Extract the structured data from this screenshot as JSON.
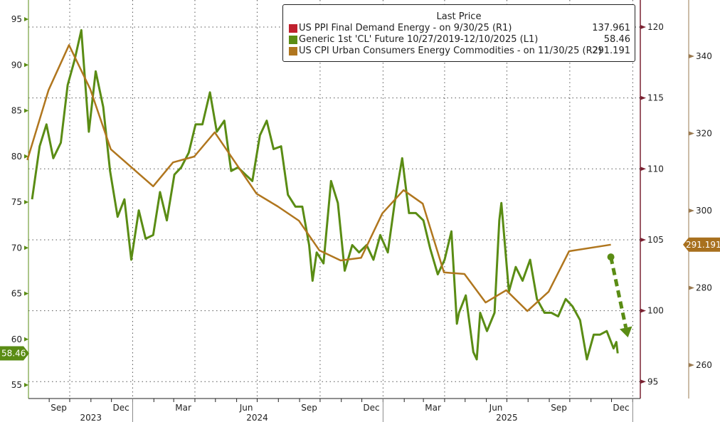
{
  "legend": {
    "title": "Last Price",
    "entries": [
      {
        "label": "US PPI Final Demand Energy -  on 9/30/25  (R1)",
        "value": "137.961",
        "color": "#c0202e"
      },
      {
        "label": "Generic 1st 'CL' Future 10/27/2019-12/10/2025   (L1)",
        "value": "58.46",
        "color": "#5a8c14"
      },
      {
        "label": "US CPI Urban Consumers Energy Commodities -  on 11/30/25  (R2)",
        "value": "291.191",
        "color": "#b0761e"
      }
    ]
  },
  "chart_data": {
    "type": "line",
    "grid": true,
    "legend_position": "top-right",
    "x_month_labels": [
      {
        "date": "2023-09-15",
        "label": "Sep"
      },
      {
        "date": "2023-12-15",
        "label": "Dec"
      },
      {
        "date": "2024-03-15",
        "label": "Mar"
      },
      {
        "date": "2024-06-15",
        "label": "Jun"
      },
      {
        "date": "2024-09-15",
        "label": "Sep"
      },
      {
        "date": "2024-12-15",
        "label": "Dec"
      },
      {
        "date": "2025-03-15",
        "label": "Mar"
      },
      {
        "date": "2025-06-15",
        "label": "Jun"
      },
      {
        "date": "2025-09-15",
        "label": "Sep"
      },
      {
        "date": "2025-12-15",
        "label": "Dec"
      }
    ],
    "x_year_labels": [
      {
        "date": "2023-11-01",
        "label": "2023"
      },
      {
        "date": "2024-07-01",
        "label": "2024"
      },
      {
        "date": "2025-07-01",
        "label": "2025"
      }
    ],
    "axes": {
      "L1": {
        "range": [
          54,
          97
        ],
        "ticks": [
          55,
          60,
          65,
          70,
          75,
          80,
          85,
          90,
          95
        ],
        "color": "#5a8c14"
      },
      "R1": {
        "range": [
          94,
          121.9
        ],
        "ticks": [
          95,
          100,
          105,
          110,
          115,
          120
        ],
        "color": "#7a2232"
      },
      "R2": {
        "range": [
          254,
          352.5
        ],
        "ticks": [
          260,
          280,
          300,
          320,
          340
        ],
        "color": "#9a7a50"
      }
    },
    "last_value_labels": {
      "L1": "58.46",
      "R2": "291.191"
    },
    "series": [
      {
        "name": "Generic 1st 'CL' Future 10/27/2019-12/10/2025   (L1)",
        "axis": "L1",
        "color": "#5a8c14",
        "points": [
          [
            "2023-08-07",
            75.3
          ],
          [
            "2023-08-18",
            81.1
          ],
          [
            "2023-08-28",
            83.5
          ],
          [
            "2023-09-07",
            79.8
          ],
          [
            "2023-09-18",
            81.5
          ],
          [
            "2023-09-28",
            87.8
          ],
          [
            "2023-10-08",
            90.5
          ],
          [
            "2023-10-18",
            93.8
          ],
          [
            "2023-10-29",
            82.7
          ],
          [
            "2023-11-08",
            89.3
          ],
          [
            "2023-11-19",
            85.4
          ],
          [
            "2023-11-29",
            78.4
          ],
          [
            "2023-12-10",
            73.4
          ],
          [
            "2023-12-20",
            75.3
          ],
          [
            "2023-12-30",
            68.7
          ],
          [
            "2024-01-10",
            74.1
          ],
          [
            "2024-01-20",
            71.0
          ],
          [
            "2024-01-31",
            71.4
          ],
          [
            "2024-02-10",
            76.1
          ],
          [
            "2024-02-20",
            73.0
          ],
          [
            "2024-03-02",
            78.0
          ],
          [
            "2024-03-12",
            78.8
          ],
          [
            "2024-03-23",
            80.4
          ],
          [
            "2024-04-02",
            83.5
          ],
          [
            "2024-04-12",
            83.5
          ],
          [
            "2024-04-23",
            87.0
          ],
          [
            "2024-05-03",
            82.7
          ],
          [
            "2024-05-14",
            83.9
          ],
          [
            "2024-05-24",
            78.4
          ],
          [
            "2024-06-03",
            78.8
          ],
          [
            "2024-06-14",
            78.0
          ],
          [
            "2024-06-24",
            77.3
          ],
          [
            "2024-07-05",
            82.3
          ],
          [
            "2024-07-15",
            83.9
          ],
          [
            "2024-07-25",
            80.8
          ],
          [
            "2024-08-05",
            81.1
          ],
          [
            "2024-08-15",
            75.8
          ],
          [
            "2024-08-26",
            74.5
          ],
          [
            "2024-09-05",
            74.5
          ],
          [
            "2024-09-15",
            70.3
          ],
          [
            "2024-09-20",
            66.4
          ],
          [
            "2024-09-26",
            69.5
          ],
          [
            "2024-10-06",
            68.3
          ],
          [
            "2024-10-17",
            77.3
          ],
          [
            "2024-10-27",
            74.9
          ],
          [
            "2024-11-06",
            67.5
          ],
          [
            "2024-11-17",
            70.3
          ],
          [
            "2024-11-27",
            69.5
          ],
          [
            "2024-12-08",
            70.3
          ],
          [
            "2024-12-18",
            68.7
          ],
          [
            "2024-12-28",
            71.4
          ],
          [
            "2025-01-08",
            69.5
          ],
          [
            "2025-01-18",
            74.9
          ],
          [
            "2025-01-29",
            79.8
          ],
          [
            "2025-02-08",
            73.8
          ],
          [
            "2025-02-18",
            73.8
          ],
          [
            "2025-03-01",
            73.0
          ],
          [
            "2025-03-11",
            69.9
          ],
          [
            "2025-03-22",
            67.1
          ],
          [
            "2025-04-01",
            68.7
          ],
          [
            "2025-04-11",
            71.8
          ],
          [
            "2025-04-19",
            61.7
          ],
          [
            "2025-04-22",
            62.9
          ],
          [
            "2025-05-02",
            64.8
          ],
          [
            "2025-05-13",
            58.6
          ],
          [
            "2025-05-18",
            57.8
          ],
          [
            "2025-05-23",
            62.9
          ],
          [
            "2025-06-02",
            60.9
          ],
          [
            "2025-06-13",
            62.9
          ],
          [
            "2025-06-20",
            73.0
          ],
          [
            "2025-06-23",
            74.9
          ],
          [
            "2025-07-04",
            65.2
          ],
          [
            "2025-07-14",
            67.9
          ],
          [
            "2025-07-24",
            66.4
          ],
          [
            "2025-08-04",
            68.7
          ],
          [
            "2025-08-14",
            64.4
          ],
          [
            "2025-08-25",
            62.9
          ],
          [
            "2025-09-04",
            62.9
          ],
          [
            "2025-09-14",
            62.5
          ],
          [
            "2025-09-25",
            64.4
          ],
          [
            "2025-10-05",
            63.6
          ],
          [
            "2025-10-16",
            62.1
          ],
          [
            "2025-10-26",
            57.8
          ],
          [
            "2025-11-05",
            60.5
          ],
          [
            "2025-11-14",
            60.5
          ],
          [
            "2025-11-24",
            60.9
          ],
          [
            "2025-12-04",
            59.0
          ],
          [
            "2025-12-08",
            59.7
          ],
          [
            "2025-12-10",
            58.46
          ]
        ]
      },
      {
        "name": "US CPI Urban Consumers Energy Commodities -  on 11/30/25  (R2)",
        "axis": "R2",
        "color": "#b0761e",
        "points": [
          [
            "2023-07-31",
            313.1
          ],
          [
            "2023-08-31",
            331.2
          ],
          [
            "2023-09-30",
            342.9
          ],
          [
            "2023-10-31",
            331.5
          ],
          [
            "2023-11-30",
            315.9
          ],
          [
            "2024-01-31",
            306.3
          ],
          [
            "2024-02-29",
            312.5
          ],
          [
            "2024-03-31",
            314.0
          ],
          [
            "2024-04-30",
            320.3
          ],
          [
            "2024-06-30",
            304.4
          ],
          [
            "2024-07-31",
            301.1
          ],
          [
            "2024-08-31",
            297.4
          ],
          [
            "2024-09-30",
            289.7
          ],
          [
            "2024-10-31",
            287.1
          ],
          [
            "2024-11-30",
            287.8
          ],
          [
            "2024-12-31",
            299.3
          ],
          [
            "2025-01-31",
            305.3
          ],
          [
            "2025-02-28",
            301.8
          ],
          [
            "2025-03-31",
            284.0
          ],
          [
            "2025-04-30",
            283.6
          ],
          [
            "2025-05-31",
            276.2
          ],
          [
            "2025-06-30",
            279.4
          ],
          [
            "2025-07-31",
            274.0
          ],
          [
            "2025-08-31",
            279.0
          ],
          [
            "2025-09-30",
            289.5
          ],
          [
            "2025-11-30",
            291.191
          ]
        ]
      },
      {
        "name": "US PPI Final Demand Energy -  on 9/30/25  (R1)",
        "axis": "R1",
        "color": "#c0202e",
        "points": []
      }
    ],
    "annotations": [
      {
        "type": "dashed-arrow",
        "color": "#5a8c14",
        "from": [
          "2025-11-30",
          69.0
        ],
        "to": [
          "2025-12-25",
          60.2
        ]
      }
    ]
  }
}
